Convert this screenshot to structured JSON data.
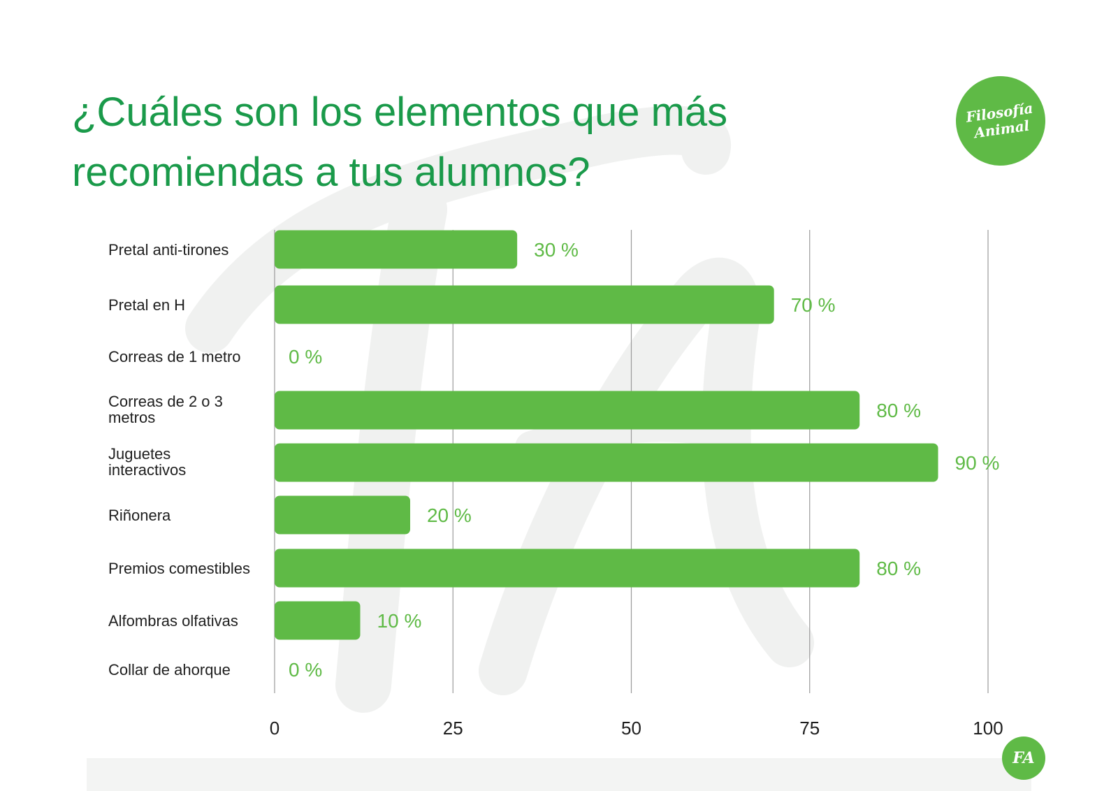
{
  "page": {
    "title": "¿Cuáles son los elementos que más recomiendas a tus alumnos?",
    "logo_line1": "Filosofía",
    "logo_line2": "Animal",
    "footer_badge": "FA"
  },
  "colors": {
    "title": "#1a9a4a",
    "bar": "#5fba46",
    "value_label": "#5fba46",
    "gridline": "#9a9a9a",
    "watermark": "#f0f1f0"
  },
  "chart_data": {
    "type": "bar",
    "orientation": "horizontal",
    "categories": [
      "Pretal anti-tirones",
      "Pretal en H",
      "Correas de 1 metro",
      "Correas de 2 o 3 metros",
      "Juguetes interactivos",
      "Riñonera",
      "Premios comestibles",
      "Alfombras olfativas",
      "Collar de ahorque"
    ],
    "values": [
      34,
      70,
      0,
      82,
      93,
      19,
      82,
      12,
      0
    ],
    "value_labels": [
      "30 %",
      "70 %",
      "0 %",
      "80 %",
      "90 %",
      "20 %",
      "80 %",
      "10 %",
      "0 %"
    ],
    "xlim": [
      0,
      100
    ],
    "xticks": [
      "0",
      "25",
      "50",
      "75",
      "100"
    ],
    "grid": true,
    "legend": "none"
  }
}
